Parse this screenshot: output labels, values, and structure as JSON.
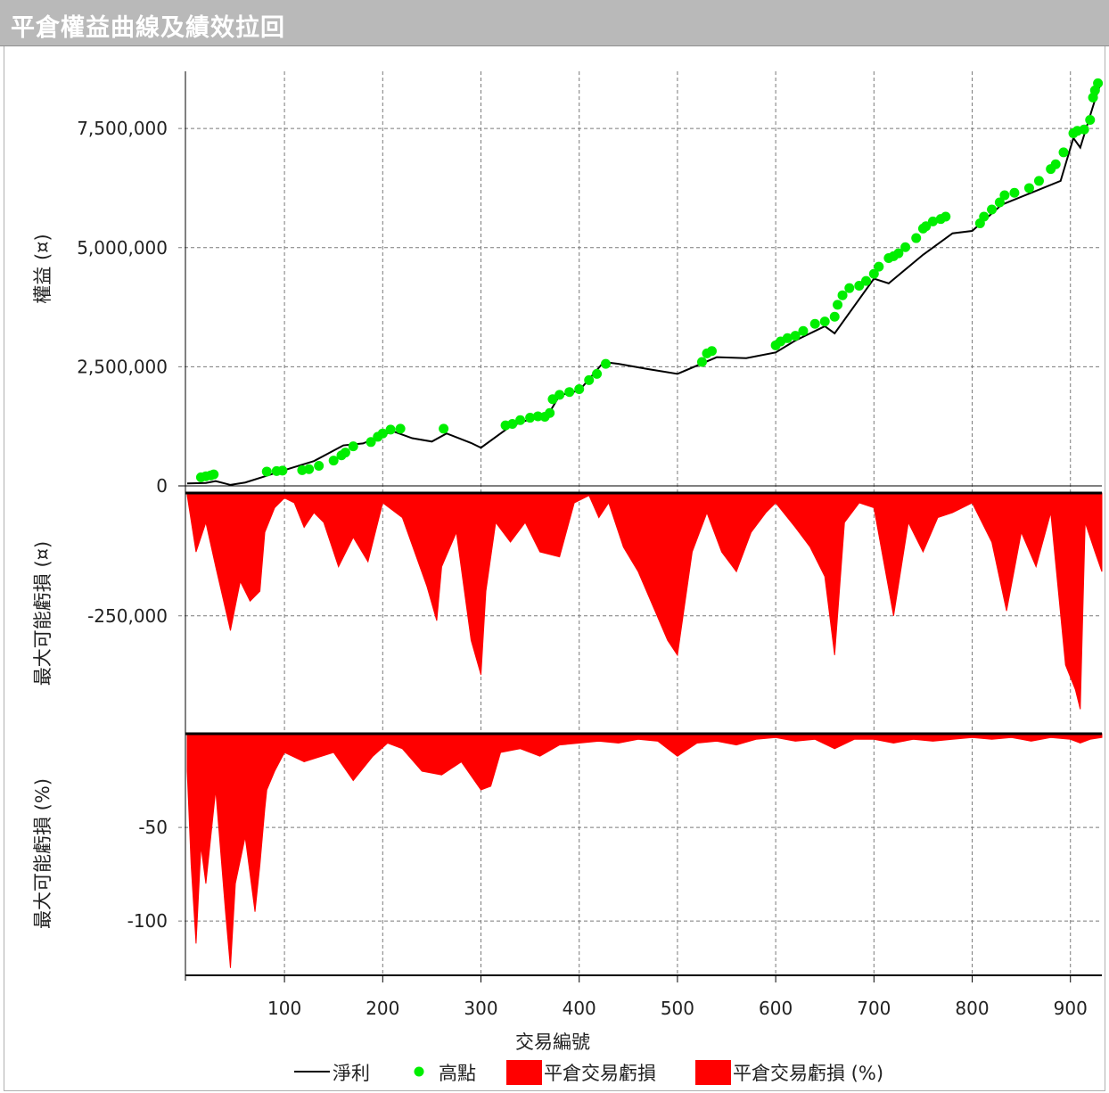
{
  "header": {
    "title": "平倉權益曲線及績效拉回"
  },
  "colors": {
    "line": "#000000",
    "highs": "#00ee00",
    "drawdown": "#ff0000",
    "grid": "#7a7a7a"
  },
  "chart_data": [
    {
      "type": "line",
      "ylabel": "權益 (¤)",
      "yticks": [
        0,
        2500000,
        5000000,
        7500000
      ],
      "ytick_labels": [
        "0",
        "2,500,000",
        "5,000,000",
        "7,500,000"
      ],
      "ylim": [
        -150000,
        8700000
      ],
      "series": [
        {
          "name": "淨利",
          "x": [
            1,
            20,
            30,
            45,
            60,
            80,
            100,
            130,
            160,
            180,
            210,
            230,
            250,
            265,
            290,
            300,
            330,
            370,
            380,
            400,
            425,
            440,
            470,
            500,
            540,
            570,
            600,
            620,
            650,
            660,
            700,
            715,
            750,
            780,
            800,
            830,
            860,
            890,
            903,
            910,
            925,
            930
          ],
          "y": [
            50000,
            60000,
            100000,
            20000,
            70000,
            200000,
            330000,
            520000,
            850000,
            890000,
            1150000,
            1000000,
            930000,
            1100000,
            900000,
            800000,
            1250000,
            1550000,
            1900000,
            2000000,
            2600000,
            2560000,
            2450000,
            2350000,
            2700000,
            2680000,
            2800000,
            3050000,
            3350000,
            3200000,
            4350000,
            4250000,
            4850000,
            5300000,
            5350000,
            5900000,
            6150000,
            6400000,
            7300000,
            7100000,
            8100000,
            8400000
          ]
        },
        {
          "name": "高點",
          "x": [
            15,
            20,
            25,
            28,
            82,
            92,
            98,
            118,
            125,
            135,
            150,
            158,
            162,
            170,
            188,
            195,
            200,
            208,
            218,
            262,
            325,
            332,
            340,
            350,
            358,
            365,
            370,
            373,
            380,
            390,
            400,
            410,
            418,
            427,
            525,
            530,
            535,
            600,
            605,
            612,
            620,
            628,
            640,
            650,
            660,
            663,
            668,
            675,
            685,
            692,
            700,
            705,
            715,
            720,
            725,
            732,
            743,
            750,
            753,
            760,
            768,
            773,
            808,
            812,
            820,
            828,
            833,
            843,
            858,
            868,
            880,
            885,
            893,
            903,
            907,
            914,
            920,
            923,
            925,
            928
          ],
          "y": [
            180000,
            200000,
            220000,
            240000,
            300000,
            310000,
            320000,
            330000,
            350000,
            420000,
            530000,
            640000,
            700000,
            830000,
            920000,
            1030000,
            1100000,
            1180000,
            1200000,
            1200000,
            1270000,
            1300000,
            1380000,
            1430000,
            1460000,
            1450000,
            1530000,
            1820000,
            1910000,
            1970000,
            2030000,
            2220000,
            2350000,
            2560000,
            2600000,
            2780000,
            2830000,
            2950000,
            3030000,
            3100000,
            3150000,
            3250000,
            3400000,
            3450000,
            3550000,
            3800000,
            4000000,
            4150000,
            4200000,
            4300000,
            4450000,
            4600000,
            4780000,
            4820000,
            4880000,
            5010000,
            5200000,
            5400000,
            5450000,
            5550000,
            5600000,
            5650000,
            5510000,
            5650000,
            5800000,
            5950000,
            6100000,
            6150000,
            6250000,
            6400000,
            6650000,
            6750000,
            7000000,
            7400000,
            7450000,
            7480000,
            7680000,
            8150000,
            8300000,
            8450000
          ]
        }
      ]
    },
    {
      "type": "area",
      "ylabel": "最大可能虧損 (¤)",
      "yticks": [
        -250000
      ],
      "ytick_labels": [
        "-250,000"
      ],
      "ylim": [
        -490000,
        0
      ],
      "series": [
        {
          "name": "平倉交易虧損",
          "x": [
            1,
            10,
            20,
            30,
            45,
            55,
            65,
            75,
            80,
            90,
            100,
            110,
            120,
            130,
            140,
            155,
            170,
            185,
            200,
            220,
            245,
            255,
            260,
            275,
            290,
            300,
            305,
            315,
            330,
            345,
            360,
            380,
            395,
            410,
            420,
            430,
            445,
            460,
            475,
            490,
            500,
            515,
            530,
            545,
            560,
            575,
            590,
            600,
            620,
            635,
            650,
            660,
            670,
            685,
            700,
            710,
            720,
            735,
            750,
            765,
            780,
            800,
            820,
            835,
            850,
            865,
            880,
            895,
            905,
            910,
            915,
            925,
            932
          ],
          "y": [
            -5000,
            -120000,
            -60000,
            -150000,
            -280000,
            -180000,
            -220000,
            -200000,
            -80000,
            -30000,
            -10000,
            -20000,
            -70000,
            -40000,
            -60000,
            -150000,
            -90000,
            -140000,
            -20000,
            -50000,
            -190000,
            -260000,
            -150000,
            -80000,
            -300000,
            -370000,
            -200000,
            -60000,
            -100000,
            -60000,
            -120000,
            -130000,
            -20000,
            -5000,
            -50000,
            -20000,
            -110000,
            -160000,
            -230000,
            -300000,
            -330000,
            -120000,
            -40000,
            -120000,
            -160000,
            -80000,
            -40000,
            -20000,
            -70000,
            -110000,
            -170000,
            -330000,
            -60000,
            -20000,
            -30000,
            -140000,
            -250000,
            -60000,
            -120000,
            -50000,
            -40000,
            -20000,
            -100000,
            -240000,
            -80000,
            -150000,
            -40000,
            -350000,
            -400000,
            -440000,
            -60000,
            -120000,
            -160000
          ]
        }
      ]
    },
    {
      "type": "area",
      "ylabel": "最大可能虧損 (%)",
      "yticks": [
        -50,
        -100
      ],
      "ytick_labels": [
        "-50",
        "-100"
      ],
      "ylim": [
        -128,
        0
      ],
      "series": [
        {
          "name": "平倉交易虧損 (%)",
          "x": [
            1,
            5,
            10,
            15,
            20,
            30,
            40,
            45,
            50,
            60,
            70,
            75,
            80,
            82,
            90,
            100,
            120,
            150,
            170,
            190,
            205,
            220,
            240,
            260,
            280,
            300,
            310,
            320,
            340,
            360,
            380,
            400,
            420,
            440,
            460,
            480,
            500,
            520,
            540,
            560,
            580,
            600,
            620,
            640,
            660,
            680,
            700,
            720,
            740,
            760,
            780,
            800,
            820,
            840,
            860,
            880,
            900,
            910,
            920,
            932
          ],
          "y": [
            -20,
            -70,
            -112,
            -60,
            -80,
            -30,
            -95,
            -125,
            -80,
            -55,
            -95,
            -70,
            -40,
            -30,
            -20,
            -10,
            -15,
            -10,
            -25,
            -12,
            -5,
            -8,
            -20,
            -22,
            -15,
            -30,
            -28,
            -10,
            -8,
            -12,
            -6,
            -5,
            -4,
            -5,
            -3,
            -4,
            -12,
            -5,
            -4,
            -6,
            -3,
            -2,
            -4,
            -3,
            -8,
            -3,
            -3,
            -5,
            -3,
            -4,
            -3,
            -2,
            -3,
            -2,
            -4,
            -2,
            -3,
            -5,
            -3,
            -2
          ]
        }
      ]
    }
  ],
  "x_axis": {
    "label": "交易編號",
    "ticks": [
      100,
      200,
      300,
      400,
      500,
      600,
      700,
      800,
      900
    ],
    "range": [
      1,
      932
    ]
  },
  "legend": {
    "placement": "bottom",
    "items": [
      {
        "label": "淨利",
        "kind": "line"
      },
      {
        "label": "高點",
        "kind": "dot"
      },
      {
        "label": "平倉交易虧損",
        "kind": "box"
      },
      {
        "label": "平倉交易虧損 (%)",
        "kind": "box"
      }
    ]
  }
}
